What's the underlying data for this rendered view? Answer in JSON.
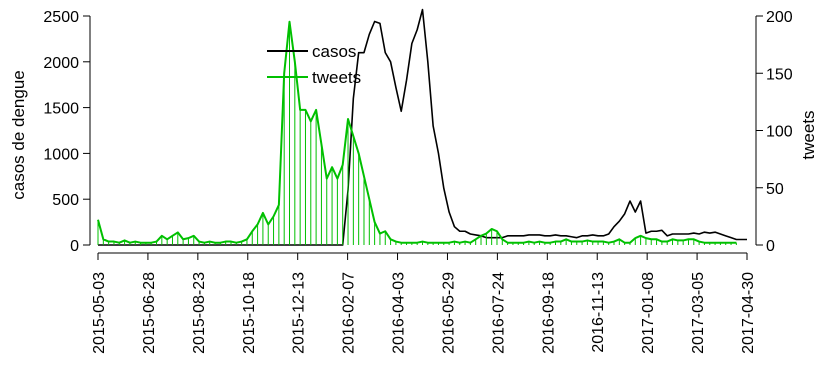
{
  "chart_data": {
    "type": "line",
    "title": "",
    "x_tick_labels": [
      "2015-05-03",
      "2015-06-28",
      "2015-08-23",
      "2015-10-18",
      "2015-12-13",
      "2016-02-07",
      "2016-04-03",
      "2016-05-29",
      "2016-07-24",
      "2016-09-18",
      "2016-11-13",
      "2017-01-08",
      "2017-03-05",
      "2017-04-30"
    ],
    "y_left": {
      "label": "casos de dengue",
      "range": [
        0,
        2500
      ],
      "ticks": [
        "0",
        "500",
        "1000",
        "1500",
        "2000",
        "2500"
      ]
    },
    "y_right": {
      "label": "tweets",
      "range": [
        0,
        200
      ],
      "ticks": [
        "0",
        "50",
        "100",
        "150",
        "200"
      ]
    },
    "legend": {
      "position": "top-center",
      "entries": [
        {
          "label": "casos",
          "color": "#000000"
        },
        {
          "label": "tweets",
          "color": "#00c000"
        }
      ]
    },
    "x_start": "2015-05-03",
    "x_step": "1 week",
    "series": [
      {
        "name": "casos",
        "axis": "left",
        "color": "#000000",
        "values": [
          0,
          0,
          0,
          0,
          0,
          0,
          0,
          0,
          0,
          0,
          0,
          0,
          0,
          0,
          0,
          0,
          0,
          0,
          0,
          0,
          0,
          0,
          0,
          0,
          0,
          0,
          0,
          0,
          0,
          0,
          0,
          0,
          0,
          0,
          0,
          0,
          0,
          0,
          0,
          0,
          0,
          0,
          0,
          0,
          0,
          0,
          0,
          600,
          1600,
          2100,
          2100,
          2300,
          2440,
          2420,
          2100,
          2000,
          1720,
          1460,
          1800,
          2200,
          2350,
          2570,
          2000,
          1300,
          1000,
          620,
          360,
          200,
          150,
          150,
          120,
          110,
          100,
          80,
          80,
          80,
          80,
          100,
          100,
          100,
          100,
          110,
          110,
          110,
          100,
          100,
          110,
          100,
          100,
          90,
          80,
          100,
          100,
          110,
          100,
          100,
          120,
          200,
          260,
          340,
          480,
          360,
          480,
          130,
          150,
          150,
          160,
          100,
          120,
          120,
          120,
          120,
          130,
          120,
          140,
          130,
          140,
          120,
          100,
          80,
          60,
          60,
          60
        ]
      },
      {
        "name": "tweets",
        "axis": "right",
        "color": "#00c000",
        "values": [
          22,
          5,
          3,
          3,
          2,
          4,
          2,
          3,
          2,
          2,
          2,
          3,
          8,
          5,
          8,
          11,
          5,
          6,
          8,
          3,
          2,
          3,
          2,
          2,
          3,
          3,
          2,
          3,
          5,
          12,
          18,
          28,
          18,
          25,
          35,
          150,
          195,
          160,
          118,
          118,
          108,
          118,
          88,
          58,
          68,
          58,
          70,
          110,
          95,
          80,
          60,
          40,
          20,
          10,
          12,
          5,
          3,
          2,
          2,
          2,
          2,
          3,
          2,
          2,
          2,
          2,
          2,
          3,
          2,
          3,
          2,
          5,
          8,
          10,
          14,
          12,
          5,
          2,
          2,
          2,
          2,
          3,
          2,
          3,
          2,
          2,
          3,
          3,
          5,
          3,
          3,
          3,
          4,
          3,
          3,
          3,
          2,
          3,
          5,
          2,
          2,
          6,
          8,
          6,
          5,
          5,
          3,
          3,
          5,
          4,
          4,
          5,
          5,
          3,
          2,
          2,
          2,
          2,
          2,
          2,
          2
        ]
      }
    ]
  }
}
